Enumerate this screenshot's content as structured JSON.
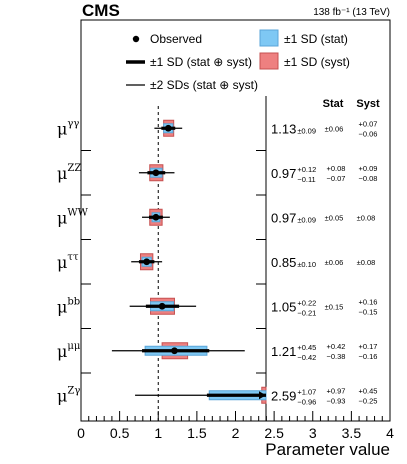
{
  "chart_data": {
    "type": "scatter",
    "experiment": "CMS",
    "lumi": "138 fb⁻¹ (13 TeV)",
    "xlabel": "Parameter value",
    "xlim": [
      0,
      4
    ],
    "x_ticks": [
      "0",
      "0.5",
      "1",
      "1.5",
      "2",
      "2.5",
      "3",
      "3.5",
      "4"
    ],
    "reference_line": 1,
    "legend": {
      "observed": "Observed",
      "total_1sd": "±1 SD (stat ⊕ syst)",
      "total_2sd": "±2 SDs (stat ⊕ syst)",
      "stat": "±1 SD (stat)",
      "syst": "±1 SD (syst)"
    },
    "col_headers": {
      "stat": "Stat",
      "syst": "Syst"
    },
    "colors": {
      "stat": "#7ec8f4",
      "syst": "#ee8080",
      "stat_edge": "#5aa5d8",
      "syst_edge": "#c55050"
    },
    "parameters": [
      {
        "label_base": "μ",
        "label_sup": "γγ",
        "value": 1.13,
        "value_text": "1.13",
        "tot_up": 0.09,
        "tot_dn": 0.09,
        "tot_text": "±0.09",
        "stat_up": 0.06,
        "stat_dn": 0.06,
        "stat_text": "±0.06",
        "syst_up": 0.07,
        "syst_dn": 0.06,
        "syst_up_text": "+0.07",
        "syst_dn_text": "−0.06",
        "tot2_lo": 0.95,
        "tot2_hi": 1.31
      },
      {
        "label_base": "μ",
        "label_sup": "ZZ",
        "value": 0.97,
        "value_text": "0.97",
        "tot_up": 0.12,
        "tot_dn": 0.11,
        "tot_up_text": "+0.12",
        "tot_dn_text": "−0.11",
        "stat_up": 0.08,
        "stat_dn": 0.07,
        "stat_up_text": "+0.08",
        "stat_dn_text": "−0.07",
        "syst_up": 0.09,
        "syst_dn": 0.08,
        "syst_up_text": "+0.09",
        "syst_dn_text": "−0.08",
        "tot2_lo": 0.75,
        "tot2_hi": 1.21
      },
      {
        "label_base": "μ",
        "label_sup": "WW",
        "value": 0.97,
        "value_text": "0.97",
        "tot_up": 0.09,
        "tot_dn": 0.09,
        "tot_text": "±0.09",
        "stat_up": 0.05,
        "stat_dn": 0.05,
        "stat_text": "±0.05",
        "syst_up": 0.08,
        "syst_dn": 0.08,
        "syst_text": "±0.08",
        "tot2_lo": 0.79,
        "tot2_hi": 1.15
      },
      {
        "label_base": "μ",
        "label_sup": "ττ",
        "value": 0.85,
        "value_text": "0.85",
        "tot_up": 0.1,
        "tot_dn": 0.1,
        "tot_text": "±0.10",
        "stat_up": 0.06,
        "stat_dn": 0.06,
        "stat_text": "±0.06",
        "syst_up": 0.08,
        "syst_dn": 0.08,
        "syst_text": "±0.08",
        "tot2_lo": 0.65,
        "tot2_hi": 1.05
      },
      {
        "label_base": "μ",
        "label_sup": "bb",
        "value": 1.05,
        "value_text": "1.05",
        "tot_up": 0.22,
        "tot_dn": 0.21,
        "tot_up_text": "+0.22",
        "tot_dn_text": "−0.21",
        "stat_up": 0.15,
        "stat_dn": 0.15,
        "stat_text": "±0.15",
        "syst_up": 0.16,
        "syst_dn": 0.15,
        "syst_up_text": "+0.16",
        "syst_dn_text": "−0.15",
        "tot2_lo": 0.63,
        "tot2_hi": 1.49
      },
      {
        "label_base": "μ",
        "label_sup": "μμ",
        "value": 1.21,
        "value_text": "1.21",
        "tot_up": 0.45,
        "tot_dn": 0.42,
        "tot_up_text": "+0.45",
        "tot_dn_text": "−0.42",
        "stat_up": 0.42,
        "stat_dn": 0.38,
        "stat_up_text": "+0.42",
        "stat_dn_text": "−0.38",
        "syst_up": 0.17,
        "syst_dn": 0.16,
        "syst_up_text": "+0.17",
        "syst_dn_text": "−0.16",
        "tot2_lo": 0.4,
        "tot2_hi": 2.12
      },
      {
        "label_base": "μ",
        "label_sup": "Zγ",
        "value": 2.59,
        "value_text": "2.59",
        "tot_up": 1.07,
        "tot_dn": 0.96,
        "tot_up_text": "+1.07",
        "tot_dn_text": "−0.96",
        "stat_up": 0.97,
        "stat_dn": 0.93,
        "stat_up_text": "+0.97",
        "stat_dn_text": "−0.93",
        "syst_up": 0.45,
        "syst_dn": 0.25,
        "syst_up_text": "+0.45",
        "syst_dn_text": "−0.25",
        "tot2_lo": 0.7,
        "tot2_hi": 4.5
      }
    ]
  }
}
